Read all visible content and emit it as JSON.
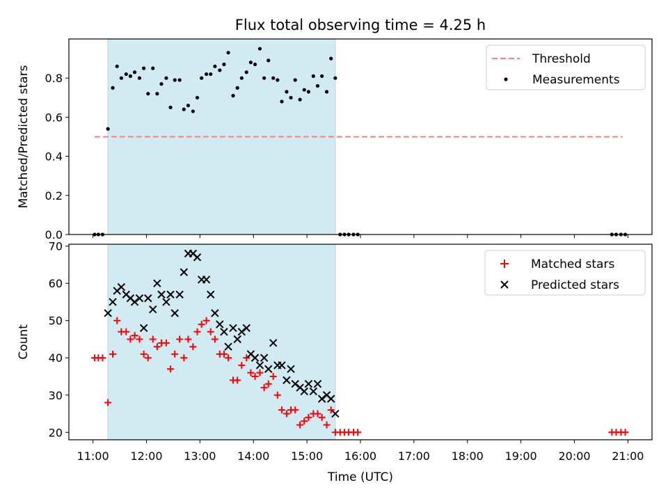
{
  "figure": {
    "title": "Flux total observing time = 4.25 h",
    "xlabel": "Time (UTC)",
    "x_ticks": [
      "11:00",
      "12:00",
      "13:00",
      "14:00",
      "15:00",
      "16:00",
      "17:00",
      "18:00",
      "19:00",
      "20:00",
      "21:00"
    ],
    "shaded_interval_hours": [
      11.28,
      15.53
    ],
    "colors": {
      "shade": "#add8e6",
      "threshold": "#ff7f7f",
      "matched": "#ff0000",
      "predicted": "#000000",
      "measurement": "#000000"
    }
  },
  "chart_data": [
    {
      "type": "scatter",
      "name": "ratio-panel",
      "ylabel": "Matched/Predicted stars",
      "xlim": [
        10.55,
        21.45
      ],
      "ylim": [
        0,
        1.0
      ],
      "y_ticks": [
        "0.0",
        "0.2",
        "0.4",
        "0.6",
        "0.8"
      ],
      "legend": {
        "position": "top-right",
        "entries": [
          "Threshold",
          "Measurements"
        ]
      },
      "threshold": {
        "name": "Threshold",
        "value": 0.5,
        "x_range": [
          11.03,
          20.9
        ]
      },
      "series": [
        {
          "name": "Measurements",
          "marker": "dot",
          "x": [
            11.03,
            11.1,
            11.18,
            11.28,
            11.37,
            11.45,
            11.53,
            11.62,
            11.7,
            11.78,
            11.87,
            11.95,
            12.03,
            12.12,
            12.2,
            12.28,
            12.37,
            12.45,
            12.53,
            12.62,
            12.7,
            12.78,
            12.87,
            12.95,
            13.03,
            13.12,
            13.2,
            13.28,
            13.37,
            13.45,
            13.53,
            13.62,
            13.7,
            13.78,
            13.87,
            13.95,
            14.03,
            14.12,
            14.2,
            14.28,
            14.37,
            14.45,
            14.53,
            14.62,
            14.7,
            14.78,
            14.87,
            14.95,
            15.03,
            15.12,
            15.2,
            15.28,
            15.37,
            15.45,
            15.53,
            15.62,
            15.7,
            15.78,
            15.87,
            15.95,
            20.7,
            20.78,
            20.87,
            20.95
          ],
          "y": [
            0,
            0,
            0,
            0.54,
            0.75,
            0.86,
            0.8,
            0.82,
            0.81,
            0.83,
            0.8,
            0.85,
            0.72,
            0.85,
            0.72,
            0.77,
            0.8,
            0.65,
            0.79,
            0.79,
            0.64,
            0.66,
            0.63,
            0.7,
            0.8,
            0.82,
            0.82,
            0.86,
            0.84,
            0.87,
            0.93,
            0.71,
            0.75,
            0.8,
            0.83,
            0.88,
            0.87,
            0.95,
            0.8,
            0.89,
            0.8,
            0.79,
            0.68,
            0.73,
            0.7,
            0.79,
            0.69,
            0.74,
            0.73,
            0.81,
            0.76,
            0.81,
            0.73,
            0.9,
            0.8,
            0,
            0,
            0,
            0,
            0,
            0,
            0,
            0,
            0
          ]
        }
      ]
    },
    {
      "type": "scatter",
      "name": "count-panel",
      "ylabel": "Count",
      "xlim": [
        10.55,
        21.45
      ],
      "ylim": [
        18,
        70.5
      ],
      "y_ticks": [
        "20",
        "30",
        "40",
        "50",
        "60",
        "70"
      ],
      "legend": {
        "position": "top-right",
        "entries": [
          "Matched stars",
          "Predicted stars"
        ]
      },
      "series": [
        {
          "name": "Matched stars",
          "marker": "plus",
          "x": [
            11.03,
            11.1,
            11.18,
            11.28,
            11.37,
            11.45,
            11.53,
            11.62,
            11.7,
            11.78,
            11.87,
            11.95,
            12.03,
            12.12,
            12.2,
            12.28,
            12.37,
            12.45,
            12.53,
            12.62,
            12.7,
            12.78,
            12.87,
            12.95,
            13.03,
            13.12,
            13.2,
            13.28,
            13.37,
            13.45,
            13.53,
            13.62,
            13.7,
            13.78,
            13.87,
            13.95,
            14.03,
            14.12,
            14.2,
            14.28,
            14.37,
            14.45,
            14.53,
            14.62,
            14.7,
            14.78,
            14.87,
            14.95,
            15.03,
            15.12,
            15.2,
            15.28,
            15.37,
            15.45,
            15.53,
            15.62,
            15.7,
            15.78,
            15.87,
            15.95,
            20.7,
            20.78,
            20.87,
            20.95
          ],
          "y": [
            40,
            40,
            40,
            28,
            41,
            50,
            47,
            47,
            45,
            46,
            45,
            41,
            40,
            45,
            43,
            44,
            44,
            37,
            41,
            45,
            40,
            45,
            43,
            47,
            49,
            50,
            47,
            45,
            41,
            41,
            40,
            34,
            34,
            38,
            40,
            36,
            35,
            36,
            32,
            33,
            35,
            30,
            26,
            25,
            26,
            26,
            22,
            23,
            24,
            25,
            25,
            24,
            22,
            26,
            20,
            20,
            20,
            20,
            20,
            20,
            20,
            20,
            20,
            20
          ]
        },
        {
          "name": "Predicted stars",
          "marker": "cross",
          "x": [
            11.28,
            11.37,
            11.45,
            11.53,
            11.62,
            11.7,
            11.78,
            11.87,
            11.95,
            12.03,
            12.12,
            12.2,
            12.28,
            12.37,
            12.45,
            12.53,
            12.62,
            12.7,
            12.78,
            12.87,
            12.95,
            13.03,
            13.12,
            13.2,
            13.28,
            13.37,
            13.45,
            13.53,
            13.62,
            13.7,
            13.78,
            13.87,
            13.95,
            14.03,
            14.12,
            14.2,
            14.28,
            14.37,
            14.45,
            14.53,
            14.62,
            14.7,
            14.78,
            14.87,
            14.95,
            15.03,
            15.12,
            15.2,
            15.28,
            15.37,
            15.45,
            15.53
          ],
          "y": [
            52,
            55,
            58,
            59,
            57,
            56,
            55,
            56,
            48,
            56,
            53,
            60,
            57,
            55,
            57,
            52,
            57,
            63,
            68,
            68,
            67,
            61,
            61,
            57,
            52,
            49,
            47,
            43,
            48,
            45,
            47,
            48,
            41,
            40,
            38,
            40,
            37,
            44,
            38,
            38,
            34,
            37,
            33,
            32,
            31,
            33,
            31,
            33,
            29,
            30,
            29,
            25
          ]
        }
      ]
    }
  ]
}
